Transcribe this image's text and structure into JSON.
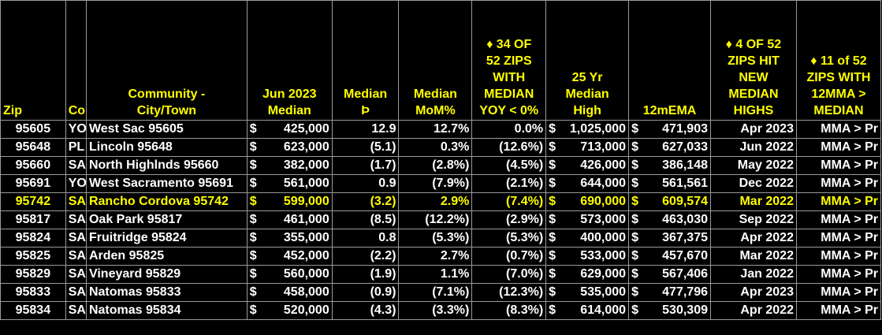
{
  "headers": {
    "zip": "Zip",
    "co": "Co",
    "community": [
      "Community -",
      "City/Town"
    ],
    "median": [
      "Jun 2023",
      "",
      "Median"
    ],
    "median_chg": [
      "Median",
      "Þ"
    ],
    "mom": [
      "Median",
      "MoM%"
    ],
    "yoy": [
      "♦  34 OF",
      "52 ZIPS",
      "WITH",
      "MEDIAN",
      "YOY < 0%"
    ],
    "high25": [
      "25 Yr",
      "Median",
      "High"
    ],
    "ema": "12mEMA",
    "highs": [
      "♦  4 OF 52",
      "ZIPS HIT",
      "NEW",
      "MEDIAN",
      "HIGHS"
    ],
    "mma": [
      "♦  11 of 52",
      "ZIPS WITH",
      "12MMA >",
      "MEDIAN"
    ]
  },
  "currency_symbol": "$",
  "highlight_row": 4,
  "rows": [
    {
      "zip": "95605",
      "co": "YO",
      "community": "West Sac 95605",
      "median": "425,000",
      "median_chg": "12.9",
      "mom": "12.7%",
      "yoy": "0.0%",
      "high25": "1,025,000",
      "ema": "471,903",
      "high_date": "Apr 2023",
      "mma": "MMA > Pr"
    },
    {
      "zip": "95648",
      "co": "PL",
      "community": "Lincoln 95648",
      "median": "623,000",
      "median_chg": "(5.1)",
      "mom": "0.3%",
      "yoy": "(12.6%)",
      "high25": "713,000",
      "ema": "627,033",
      "high_date": "Jun 2022",
      "mma": "MMA > Pr"
    },
    {
      "zip": "95660",
      "co": "SA",
      "community": "North Highlnds 95660",
      "median": "382,000",
      "median_chg": "(1.7)",
      "mom": "(2.8%)",
      "yoy": "(4.5%)",
      "high25": "426,000",
      "ema": "386,148",
      "high_date": "May 2022",
      "mma": "MMA > Pr"
    },
    {
      "zip": "95691",
      "co": "YO",
      "community": "West Sacramento 95691",
      "median": "561,000",
      "median_chg": "0.9",
      "mom": "(7.9%)",
      "yoy": "(2.1%)",
      "high25": "644,000",
      "ema": "561,561",
      "high_date": "Dec 2022",
      "mma": "MMA > Pr"
    },
    {
      "zip": "95742",
      "co": "SA",
      "community": "Rancho Cordova 95742",
      "median": "599,000",
      "median_chg": "(3.2)",
      "mom": "2.9%",
      "yoy": "(7.4%)",
      "high25": "690,000",
      "ema": "609,574",
      "high_date": "Mar 2022",
      "mma": "MMA > Pr"
    },
    {
      "zip": "95817",
      "co": "SA",
      "community": "Oak Park 95817",
      "median": "461,000",
      "median_chg": "(8.5)",
      "mom": "(12.2%)",
      "yoy": "(2.9%)",
      "high25": "573,000",
      "ema": "463,030",
      "high_date": "Sep 2022",
      "mma": "MMA > Pr"
    },
    {
      "zip": "95824",
      "co": "SA",
      "community": "Fruitridge 95824",
      "median": "355,000",
      "median_chg": "0.8",
      "mom": "(5.3%)",
      "yoy": "(5.3%)",
      "high25": "400,000",
      "ema": "367,375",
      "high_date": "Apr 2022",
      "mma": "MMA > Pr"
    },
    {
      "zip": "95825",
      "co": "SA",
      "community": "Arden 95825",
      "median": "452,000",
      "median_chg": "(2.2)",
      "mom": "2.7%",
      "yoy": "(0.7%)",
      "high25": "533,000",
      "ema": "457,670",
      "high_date": "Mar 2022",
      "mma": "MMA > Pr"
    },
    {
      "zip": "95829",
      "co": "SA",
      "community": "Vineyard 95829",
      "median": "560,000",
      "median_chg": "(1.9)",
      "mom": "1.1%",
      "yoy": "(7.0%)",
      "high25": "629,000",
      "ema": "567,406",
      "high_date": "Jan 2022",
      "mma": "MMA > Pr"
    },
    {
      "zip": "95833",
      "co": "SA",
      "community": "Natomas 95833",
      "median": "458,000",
      "median_chg": "(0.9)",
      "mom": "(7.1%)",
      "yoy": "(12.3%)",
      "high25": "535,000",
      "ema": "477,796",
      "high_date": "Apr 2023",
      "mma": "MMA > Pr"
    },
    {
      "zip": "95834",
      "co": "SA",
      "community": "Natomas 95834",
      "median": "520,000",
      "median_chg": "(4.3)",
      "mom": "(3.3%)",
      "yoy": "(8.3%)",
      "high25": "614,000",
      "ema": "530,309",
      "high_date": "Apr 2022",
      "mma": "MMA > Pr"
    }
  ]
}
